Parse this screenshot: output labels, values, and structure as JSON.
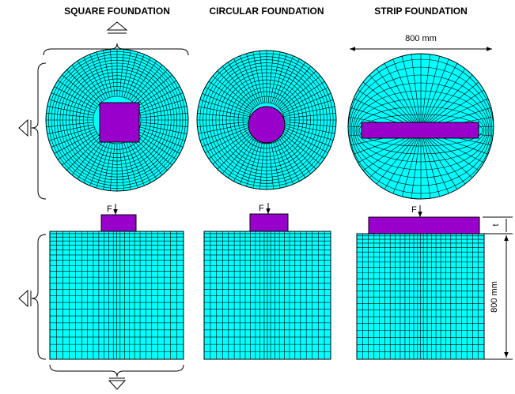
{
  "panels": [
    {
      "title": "SQUARE FOUNDATION",
      "force": "F"
    },
    {
      "title": "CIRCULAR FOUNDATION",
      "force": "F"
    },
    {
      "title": "STRIP FOUNDATION",
      "force": "F"
    }
  ],
  "dimensions": {
    "diameter": "800 mm",
    "height": "800 mm",
    "thickness": "t"
  }
}
